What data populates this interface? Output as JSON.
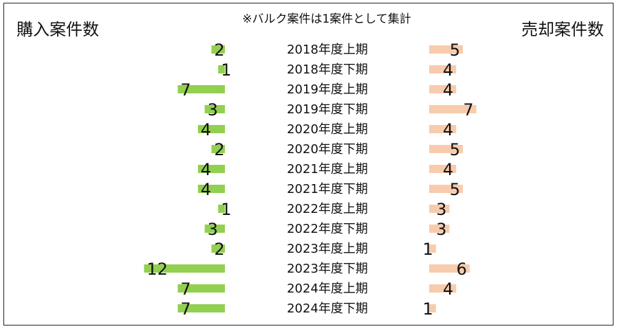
{
  "chart_data": {
    "type": "bar",
    "title": "※バルク案件は1案件として集計",
    "left_title": "購入案件数",
    "right_title": "売却案件数",
    "categories": [
      "2018年度上期",
      "2018年度下期",
      "2019年度上期",
      "2019年度下期",
      "2020年度上期",
      "2020年度下期",
      "2021年度上期",
      "2021年度下期",
      "2022年度上期",
      "2022年度下期",
      "2023年度上期",
      "2023年度下期",
      "2024年度上期",
      "2024年度下期"
    ],
    "series": [
      {
        "name": "購入案件数",
        "values": [
          2,
          1,
          7,
          3,
          4,
          2,
          4,
          4,
          1,
          3,
          2,
          12,
          7,
          7
        ],
        "color": "#92d050"
      },
      {
        "name": "売却案件数",
        "values": [
          5,
          4,
          4,
          7,
          4,
          5,
          4,
          5,
          3,
          3,
          1,
          6,
          4,
          1
        ],
        "color": "#f8cbad"
      }
    ]
  }
}
